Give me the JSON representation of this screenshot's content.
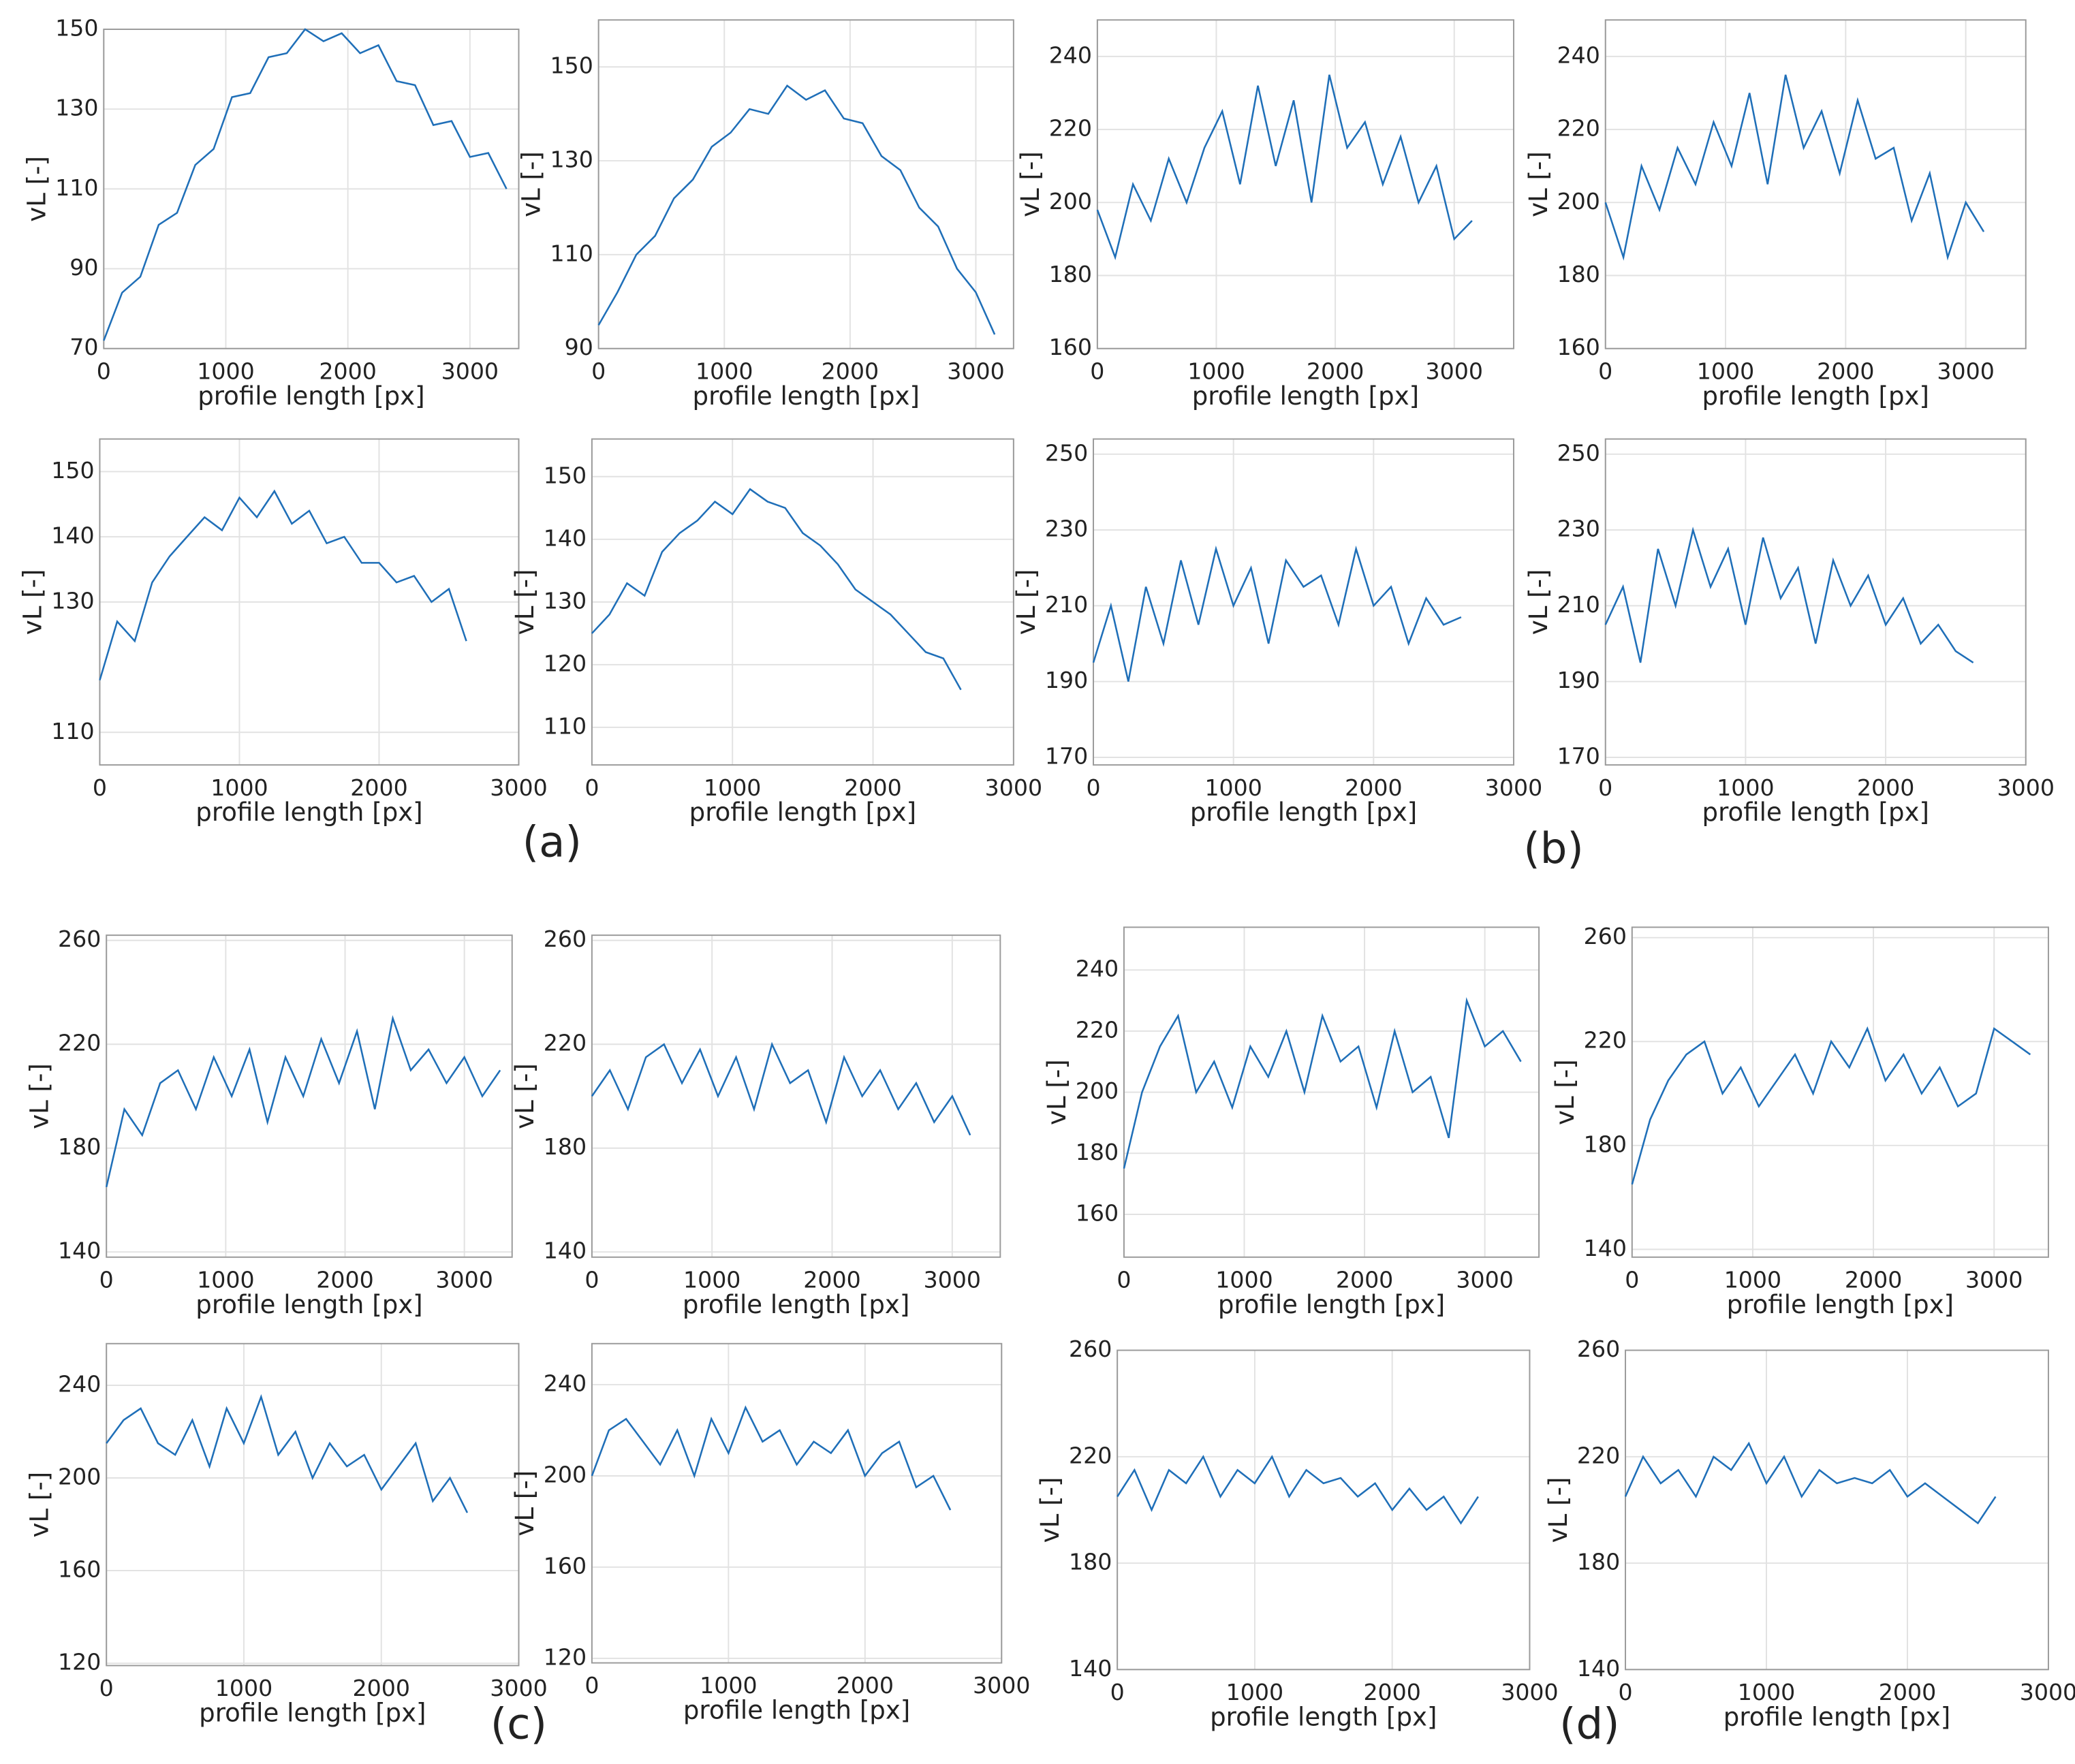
{
  "panel_labels": [
    "(a)",
    "(b)",
    "(c)",
    "(d)"
  ],
  "chart_data": [
    {
      "type": "line",
      "xlabel": "profile length [px]",
      "ylabel": "vL [-]",
      "xlim": [
        0,
        3400
      ],
      "ylim": [
        70,
        150
      ],
      "xticks": [
        0,
        1000,
        2000,
        3000
      ],
      "yticks": [
        70,
        90,
        110,
        130,
        150
      ],
      "grid": true,
      "x": [
        0,
        150,
        300,
        450,
        600,
        750,
        900,
        1050,
        1200,
        1350,
        1500,
        1650,
        1800,
        1950,
        2100,
        2250,
        2400,
        2550,
        2700,
        2850,
        3000,
        3150,
        3300
      ],
      "series": [
        {
          "color": "#1f6fb8",
          "values": [
            72,
            84,
            88,
            101,
            104,
            116,
            120,
            133,
            134,
            143,
            144,
            150,
            147,
            149,
            144,
            146,
            137,
            136,
            126,
            127,
            118,
            119,
            110
          ]
        }
      ]
    },
    {
      "type": "line",
      "xlabel": "profile length [px]",
      "ylabel": "vL [-]",
      "xlim": [
        0,
        3300
      ],
      "ylim": [
        90,
        160
      ],
      "xticks": [
        0,
        1000,
        2000,
        3000
      ],
      "yticks": [
        90,
        110,
        130,
        150
      ],
      "grid": true,
      "x": [
        0,
        150,
        300,
        450,
        600,
        750,
        900,
        1050,
        1200,
        1350,
        1500,
        1650,
        1800,
        1950,
        2100,
        2250,
        2400,
        2550,
        2700,
        2850,
        3000,
        3150
      ],
      "series": [
        {
          "color": "#1f6fb8",
          "values": [
            95,
            102,
            110,
            114,
            122,
            126,
            133,
            136,
            141,
            140,
            146,
            143,
            145,
            139,
            138,
            131,
            128,
            120,
            116,
            107,
            102,
            93
          ]
        }
      ]
    },
    {
      "type": "line",
      "xlabel": "profile length [px]",
      "ylabel": "vL [-]",
      "xlim": [
        0,
        3500
      ],
      "ylim": [
        160,
        250
      ],
      "xticks": [
        0,
        1000,
        2000,
        3000
      ],
      "yticks": [
        160,
        180,
        200,
        220,
        240
      ],
      "grid": true,
      "x": [
        0,
        150,
        300,
        450,
        600,
        750,
        900,
        1050,
        1200,
        1350,
        1500,
        1650,
        1800,
        1950,
        2100,
        2250,
        2400,
        2550,
        2700,
        2850,
        3000,
        3150
      ],
      "series": [
        {
          "color": "#1f6fb8",
          "values": [
            198,
            185,
            205,
            195,
            212,
            200,
            215,
            225,
            205,
            232,
            210,
            228,
            200,
            235,
            215,
            222,
            205,
            218,
            200,
            210,
            190,
            195
          ]
        }
      ]
    },
    {
      "type": "line",
      "xlabel": "profile length [px]",
      "ylabel": "vL [-]",
      "xlim": [
        0,
        3500
      ],
      "ylim": [
        160,
        250
      ],
      "xticks": [
        0,
        1000,
        2000,
        3000
      ],
      "yticks": [
        160,
        180,
        200,
        220,
        240
      ],
      "grid": true,
      "x": [
        0,
        150,
        300,
        450,
        600,
        750,
        900,
        1050,
        1200,
        1350,
        1500,
        1650,
        1800,
        1950,
        2100,
        2250,
        2400,
        2550,
        2700,
        2850,
        3000,
        3150
      ],
      "series": [
        {
          "color": "#1f6fb8",
          "values": [
            200,
            185,
            210,
            198,
            215,
            205,
            222,
            210,
            230,
            205,
            235,
            215,
            225,
            208,
            228,
            212,
            215,
            195,
            208,
            185,
            200,
            192
          ]
        }
      ]
    },
    {
      "type": "line",
      "xlabel": "profile length [px]",
      "ylabel": "vL [-]",
      "xlim": [
        0,
        3000
      ],
      "ylim": [
        105,
        155
      ],
      "xticks": [
        0,
        1000,
        2000,
        3000
      ],
      "yticks": [
        110,
        130,
        140,
        150
      ],
      "grid": true,
      "x": [
        0,
        125,
        250,
        375,
        500,
        625,
        750,
        875,
        1000,
        1125,
        1250,
        1375,
        1500,
        1625,
        1750,
        1875,
        2000,
        2125,
        2250,
        2375,
        2500,
        2625
      ],
      "series": [
        {
          "color": "#1f6fb8",
          "values": [
            118,
            127,
            124,
            133,
            137,
            140,
            143,
            141,
            146,
            143,
            147,
            142,
            144,
            139,
            140,
            136,
            136,
            133,
            134,
            130,
            132,
            124
          ]
        }
      ]
    },
    {
      "type": "line",
      "xlabel": "profile length [px]",
      "ylabel": "vL [-]",
      "xlim": [
        0,
        3000
      ],
      "ylim": [
        104,
        156
      ],
      "xticks": [
        0,
        1000,
        2000,
        3000
      ],
      "yticks": [
        110,
        120,
        130,
        140,
        150
      ],
      "grid": true,
      "x": [
        0,
        125,
        250,
        375,
        500,
        625,
        750,
        875,
        1000,
        1125,
        1250,
        1375,
        1500,
        1625,
        1750,
        1875,
        2000,
        2125,
        2250,
        2375,
        2500,
        2625
      ],
      "series": [
        {
          "color": "#1f6fb8",
          "values": [
            125,
            128,
            133,
            131,
            138,
            141,
            143,
            146,
            144,
            148,
            146,
            145,
            141,
            139,
            136,
            132,
            130,
            128,
            125,
            122,
            121,
            116
          ]
        }
      ]
    },
    {
      "type": "line",
      "xlabel": "profile length [px]",
      "ylabel": "vL [-]",
      "xlim": [
        0,
        3000
      ],
      "ylim": [
        168,
        254
      ],
      "xticks": [
        0,
        1000,
        2000,
        3000
      ],
      "yticks": [
        170,
        190,
        210,
        230,
        250
      ],
      "grid": true,
      "x": [
        0,
        125,
        250,
        375,
        500,
        625,
        750,
        875,
        1000,
        1125,
        1250,
        1375,
        1500,
        1625,
        1750,
        1875,
        2000,
        2125,
        2250,
        2375,
        2500,
        2625
      ],
      "series": [
        {
          "color": "#1f6fb8",
          "values": [
            195,
            210,
            190,
            215,
            200,
            222,
            205,
            225,
            210,
            220,
            200,
            222,
            215,
            218,
            205,
            225,
            210,
            215,
            200,
            212,
            205,
            207
          ]
        }
      ]
    },
    {
      "type": "line",
      "xlabel": "profile length [px]",
      "ylabel": "vL [-]",
      "xlim": [
        0,
        3000
      ],
      "ylim": [
        168,
        254
      ],
      "xticks": [
        0,
        1000,
        2000,
        3000
      ],
      "yticks": [
        170,
        190,
        210,
        230,
        250
      ],
      "grid": true,
      "x": [
        0,
        125,
        250,
        375,
        500,
        625,
        750,
        875,
        1000,
        1125,
        1250,
        1375,
        1500,
        1625,
        1750,
        1875,
        2000,
        2125,
        2250,
        2375,
        2500,
        2625
      ],
      "series": [
        {
          "color": "#1f6fb8",
          "values": [
            205,
            215,
            195,
            225,
            210,
            230,
            215,
            225,
            205,
            228,
            212,
            220,
            200,
            222,
            210,
            218,
            205,
            212,
            200,
            205,
            198,
            195
          ]
        }
      ]
    },
    {
      "type": "line",
      "xlabel": "profile length [px]",
      "ylabel": "vL [-]",
      "xlim": [
        0,
        3400
      ],
      "ylim": [
        138,
        262
      ],
      "xticks": [
        0,
        1000,
        2000,
        3000
      ],
      "yticks": [
        140,
        180,
        220,
        260
      ],
      "grid": true,
      "x": [
        0,
        150,
        300,
        450,
        600,
        750,
        900,
        1050,
        1200,
        1350,
        1500,
        1650,
        1800,
        1950,
        2100,
        2250,
        2400,
        2550,
        2700,
        2850,
        3000,
        3150,
        3300
      ],
      "series": [
        {
          "color": "#1f6fb8",
          "values": [
            165,
            195,
            185,
            205,
            210,
            195,
            215,
            200,
            218,
            190,
            215,
            200,
            222,
            205,
            225,
            195,
            230,
            210,
            218,
            205,
            215,
            200,
            210
          ]
        }
      ]
    },
    {
      "type": "line",
      "xlabel": "profile length [px]",
      "ylabel": "vL [-]",
      "xlim": [
        0,
        3400
      ],
      "ylim": [
        138,
        262
      ],
      "xticks": [
        0,
        1000,
        2000,
        3000
      ],
      "yticks": [
        140,
        180,
        220,
        260
      ],
      "grid": true,
      "x": [
        0,
        150,
        300,
        450,
        600,
        750,
        900,
        1050,
        1200,
        1350,
        1500,
        1650,
        1800,
        1950,
        2100,
        2250,
        2400,
        2550,
        2700,
        2850,
        3000,
        3150
      ],
      "series": [
        {
          "color": "#1f6fb8",
          "values": [
            200,
            210,
            195,
            215,
            220,
            205,
            218,
            200,
            215,
            195,
            220,
            205,
            210,
            190,
            215,
            200,
            210,
            195,
            205,
            190,
            200,
            185
          ]
        }
      ]
    },
    {
      "type": "line",
      "xlabel": "profile length [px]",
      "ylabel": "vL [-]",
      "xlim": [
        0,
        3450
      ],
      "ylim": [
        146,
        254
      ],
      "xticks": [
        0,
        1000,
        2000,
        3000
      ],
      "yticks": [
        160,
        180,
        200,
        220,
        240
      ],
      "grid": true,
      "x": [
        0,
        150,
        300,
        450,
        600,
        750,
        900,
        1050,
        1200,
        1350,
        1500,
        1650,
        1800,
        1950,
        2100,
        2250,
        2400,
        2550,
        2700,
        2850,
        3000,
        3150,
        3300
      ],
      "series": [
        {
          "color": "#1f6fb8",
          "values": [
            175,
            200,
            215,
            225,
            200,
            210,
            195,
            215,
            205,
            220,
            200,
            225,
            210,
            215,
            195,
            220,
            200,
            205,
            185,
            230,
            215,
            220,
            210
          ]
        }
      ]
    },
    {
      "type": "line",
      "xlabel": "profile length [px]",
      "ylabel": "vL [-]",
      "xlim": [
        0,
        3450
      ],
      "ylim": [
        137,
        264
      ],
      "xticks": [
        0,
        1000,
        2000,
        3000
      ],
      "yticks": [
        140,
        180,
        220,
        260
      ],
      "grid": true,
      "x": [
        0,
        150,
        300,
        450,
        600,
        750,
        900,
        1050,
        1200,
        1350,
        1500,
        1650,
        1800,
        1950,
        2100,
        2250,
        2400,
        2550,
        2700,
        2850,
        3000,
        3150,
        3300
      ],
      "series": [
        {
          "color": "#1f6fb8",
          "values": [
            165,
            190,
            205,
            215,
            220,
            200,
            210,
            195,
            205,
            215,
            200,
            220,
            210,
            225,
            205,
            215,
            200,
            210,
            195,
            200,
            225,
            220,
            215
          ]
        }
      ]
    },
    {
      "type": "line",
      "xlabel": "profile length [px]",
      "ylabel": "vL [-]",
      "xlim": [
        0,
        3000
      ],
      "ylim": [
        119,
        258
      ],
      "xticks": [
        0,
        1000,
        2000,
        3000
      ],
      "yticks": [
        120,
        160,
        200,
        240
      ],
      "grid": true,
      "x": [
        0,
        125,
        250,
        375,
        500,
        625,
        750,
        875,
        1000,
        1125,
        1250,
        1375,
        1500,
        1625,
        1750,
        1875,
        2000,
        2125,
        2250,
        2375,
        2500,
        2625
      ],
      "series": [
        {
          "color": "#1f6fb8",
          "values": [
            215,
            225,
            230,
            215,
            210,
            225,
            205,
            230,
            215,
            235,
            210,
            220,
            200,
            215,
            205,
            210,
            195,
            205,
            215,
            190,
            200,
            185
          ]
        }
      ]
    },
    {
      "type": "line",
      "xlabel": "profile length [px]",
      "ylabel": "vL [-]",
      "xlim": [
        0,
        3000
      ],
      "ylim": [
        118,
        258
      ],
      "xticks": [
        0,
        1000,
        2000,
        3000
      ],
      "yticks": [
        120,
        160,
        200,
        240
      ],
      "grid": true,
      "x": [
        0,
        125,
        250,
        375,
        500,
        625,
        750,
        875,
        1000,
        1125,
        1250,
        1375,
        1500,
        1625,
        1750,
        1875,
        2000,
        2125,
        2250,
        2375,
        2500,
        2625
      ],
      "series": [
        {
          "color": "#1f6fb8",
          "values": [
            200,
            220,
            225,
            215,
            205,
            220,
            200,
            225,
            210,
            230,
            215,
            220,
            205,
            215,
            210,
            220,
            200,
            210,
            215,
            195,
            200,
            185
          ]
        }
      ]
    },
    {
      "type": "line",
      "xlabel": "profile length [px]",
      "ylabel": "vL [-]",
      "xlim": [
        0,
        3000
      ],
      "ylim": [
        140,
        260
      ],
      "xticks": [
        0,
        1000,
        2000,
        3000
      ],
      "yticks": [
        140,
        180,
        220,
        260
      ],
      "grid": true,
      "x": [
        0,
        125,
        250,
        375,
        500,
        625,
        750,
        875,
        1000,
        1125,
        1250,
        1375,
        1500,
        1625,
        1750,
        1875,
        2000,
        2125,
        2250,
        2375,
        2500,
        2625
      ],
      "series": [
        {
          "color": "#1f6fb8",
          "values": [
            205,
            215,
            200,
            215,
            210,
            220,
            205,
            215,
            210,
            220,
            205,
            215,
            210,
            212,
            205,
            210,
            200,
            208,
            200,
            205,
            195,
            205
          ]
        }
      ]
    },
    {
      "type": "line",
      "xlabel": "profile length [px]",
      "ylabel": "vL [-]",
      "xlim": [
        0,
        3000
      ],
      "ylim": [
        140,
        260
      ],
      "xticks": [
        0,
        1000,
        2000,
        3000
      ],
      "yticks": [
        140,
        180,
        220,
        260
      ],
      "grid": true,
      "x": [
        0,
        125,
        250,
        375,
        500,
        625,
        750,
        875,
        1000,
        1125,
        1250,
        1375,
        1500,
        1625,
        1750,
        1875,
        2000,
        2125,
        2250,
        2375,
        2500,
        2625
      ],
      "series": [
        {
          "color": "#1f6fb8",
          "values": [
            205,
            220,
            210,
            215,
            205,
            220,
            215,
            225,
            210,
            220,
            205,
            215,
            210,
            212,
            210,
            215,
            205,
            210,
            205,
            200,
            195,
            205
          ]
        }
      ]
    }
  ]
}
